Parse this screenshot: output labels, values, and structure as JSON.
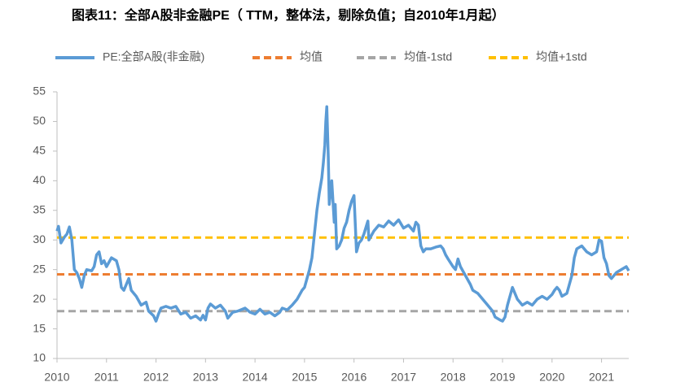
{
  "chart_data": {
    "type": "line",
    "title": "图表11：全部A股非金融PE（ TTM，整体法，剔除负值；自2010年1月起）",
    "x": [
      2010.0,
      2010.03,
      2010.08,
      2010.15,
      2010.2,
      2010.25,
      2010.3,
      2010.35,
      2010.4,
      2010.45,
      2010.5,
      2010.55,
      2010.6,
      2010.7,
      2010.75,
      2010.8,
      2010.85,
      2010.9,
      2010.95,
      2011.0,
      2011.1,
      2011.2,
      2011.25,
      2011.3,
      2011.35,
      2011.45,
      2011.5,
      2011.6,
      2011.7,
      2011.8,
      2011.85,
      2011.95,
      2012.0,
      2012.05,
      2012.1,
      2012.2,
      2012.3,
      2012.4,
      2012.5,
      2012.6,
      2012.7,
      2012.8,
      2012.9,
      2012.95,
      2013.0,
      2013.05,
      2013.1,
      2013.2,
      2013.3,
      2013.4,
      2013.45,
      2013.55,
      2013.65,
      2013.8,
      2013.9,
      2014.0,
      2014.1,
      2014.2,
      2014.3,
      2014.4,
      2014.5,
      2014.55,
      2014.65,
      2014.75,
      2014.85,
      2014.95,
      2015.0,
      2015.05,
      2015.1,
      2015.15,
      2015.2,
      2015.25,
      2015.3,
      2015.35,
      2015.38,
      2015.41,
      2015.43,
      2015.45,
      2015.48,
      2015.5,
      2015.55,
      2015.6,
      2015.62,
      2015.65,
      2015.7,
      2015.75,
      2015.8,
      2015.85,
      2015.9,
      2015.95,
      2016.0,
      2016.05,
      2016.1,
      2016.15,
      2016.2,
      2016.28,
      2016.3,
      2016.4,
      2016.5,
      2016.6,
      2016.7,
      2016.8,
      2016.9,
      2017.0,
      2017.1,
      2017.2,
      2017.25,
      2017.3,
      2017.35,
      2017.4,
      2017.45,
      2017.55,
      2017.65,
      2017.75,
      2017.8,
      2017.85,
      2017.9,
      2018.0,
      2018.05,
      2018.1,
      2018.15,
      2018.25,
      2018.35,
      2018.4,
      2018.5,
      2018.6,
      2018.7,
      2018.8,
      2018.85,
      2018.95,
      2019.0,
      2019.05,
      2019.1,
      2019.15,
      2019.2,
      2019.3,
      2019.4,
      2019.5,
      2019.6,
      2019.7,
      2019.8,
      2019.9,
      2020.0,
      2020.05,
      2020.1,
      2020.15,
      2020.2,
      2020.3,
      2020.4,
      2020.45,
      2020.5,
      2020.6,
      2020.7,
      2020.8,
      2020.9,
      2020.95,
      2021.0,
      2021.05,
      2021.1,
      2021.15,
      2021.2,
      2021.3,
      2021.4,
      2021.5,
      2021.55
    ],
    "series": [
      {
        "name": "PE:全部A股(非金融)",
        "color": "#5b9bd5",
        "values": [
          31.5,
          32.3,
          29.5,
          30.5,
          31,
          32.2,
          30,
          25,
          24.5,
          23.5,
          22,
          24,
          25,
          24.8,
          25.5,
          27.5,
          28,
          26,
          26.5,
          25.5,
          27,
          26.5,
          25,
          22,
          21.5,
          23.5,
          21.5,
          20.5,
          19,
          19.5,
          18,
          17.2,
          16.3,
          17.5,
          18.5,
          18.8,
          18.5,
          18.8,
          17.5,
          17.8,
          16.8,
          17.2,
          16.5,
          17.3,
          16.5,
          18.5,
          19.2,
          18.5,
          19,
          18,
          16.8,
          17.8,
          18,
          18.5,
          17.8,
          17.5,
          18.3,
          17.5,
          17.8,
          17.2,
          17.8,
          18.5,
          18.2,
          19,
          20,
          21.5,
          22,
          23.5,
          25,
          27,
          31,
          35,
          38,
          40.5,
          43,
          46,
          50,
          52.5,
          44,
          36,
          40,
          33,
          36,
          28.5,
          29,
          30,
          32,
          33,
          35,
          36.5,
          37.5,
          28,
          29.5,
          30,
          31,
          33.2,
          30,
          31.5,
          32.5,
          32.2,
          33.2,
          32.5,
          33.4,
          32,
          32.5,
          31.5,
          33,
          32.5,
          29,
          28,
          28.5,
          28.5,
          28.8,
          29,
          28.5,
          27.5,
          26.8,
          25.5,
          25,
          26.8,
          25.5,
          24,
          22.5,
          21.5,
          21,
          20,
          19,
          18,
          17,
          16.5,
          16.3,
          17,
          19,
          20.5,
          22,
          20,
          19,
          19.5,
          19,
          20,
          20.5,
          20,
          20.8,
          21.5,
          22,
          21.5,
          20.5,
          21,
          24,
          27,
          28.5,
          29,
          28,
          27.5,
          28,
          30,
          29.8,
          27,
          26,
          24,
          23.5,
          24.5,
          25,
          25.5,
          24.8
        ]
      }
    ],
    "reference_lines": [
      {
        "name": "均值",
        "value": 24.2,
        "color": "#ed7d31"
      },
      {
        "name": "均值-1std",
        "value": 18.0,
        "color": "#a5a5a5"
      },
      {
        "name": "均值+1std",
        "value": 30.4,
        "color": "#ffc000"
      }
    ],
    "xlim": [
      2010,
      2021.55
    ],
    "xticks": [
      2010,
      2011,
      2012,
      2013,
      2014,
      2015,
      2016,
      2017,
      2018,
      2019,
      2020,
      2021
    ],
    "ylim": [
      10,
      55
    ],
    "yticks": [
      10,
      15,
      20,
      25,
      30,
      35,
      40,
      45,
      50,
      55
    ],
    "grid": false
  }
}
